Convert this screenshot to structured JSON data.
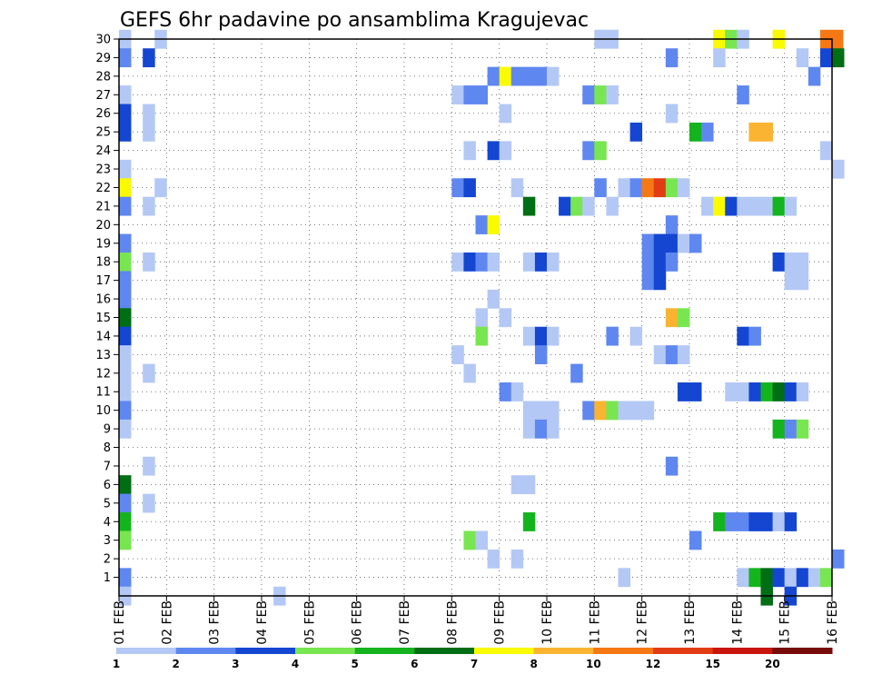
{
  "chart_data": {
    "type": "heatmap",
    "title": "GEFS 6hr padavine po ansamblima Kragujevac",
    "x_tick_labels": [
      "01 FEB",
      "02 FEB",
      "03 FEB",
      "04 FEB",
      "05 FEB",
      "06 FEB",
      "07 FEB",
      "08 FEB",
      "09 FEB",
      "10 FEB",
      "11 FEB",
      "12 FEB",
      "13 FEB",
      "14 FEB",
      "15 FEB",
      "16 FEB"
    ],
    "y_tick_labels": [
      "1",
      "2",
      "3",
      "4",
      "5",
      "6",
      "7",
      "8",
      "9",
      "10",
      "11",
      "12",
      "13",
      "14",
      "15",
      "16",
      "17",
      "18",
      "19",
      "20",
      "21",
      "22",
      "23",
      "24",
      "25",
      "26",
      "27",
      "28",
      "29",
      "30"
    ],
    "x_range": [
      0,
      15
    ],
    "y_range": [
      0,
      30
    ],
    "grid": true,
    "levels": [
      {
        "label": "1",
        "color": "#b4c8f5"
      },
      {
        "label": "2",
        "color": "#5f87f0"
      },
      {
        "label": "3",
        "color": "#1446d2"
      },
      {
        "label": "4",
        "color": "#78e650"
      },
      {
        "label": "5",
        "color": "#14b41e"
      },
      {
        "label": "6",
        "color": "#006e14"
      },
      {
        "label": "7",
        "color": "#fafa00"
      },
      {
        "label": "8",
        "color": "#fab432"
      },
      {
        "label": "10",
        "color": "#f57814"
      },
      {
        "label": "12",
        "color": "#e13c14"
      },
      {
        "label": "15",
        "color": "#c8140a"
      },
      {
        "label": "20",
        "color": "#780a0a"
      }
    ],
    "cells": [
      [
        0,
        30,
        0
      ],
      [
        0.75,
        30,
        0
      ],
      [
        10,
        30,
        0
      ],
      [
        10.25,
        30,
        0
      ],
      [
        12.5,
        30,
        6
      ],
      [
        12.75,
        30,
        3
      ],
      [
        13,
        30,
        0
      ],
      [
        13.75,
        30,
        6
      ],
      [
        14.75,
        30,
        8
      ],
      [
        14.98,
        30,
        8
      ],
      [
        0,
        29,
        1
      ],
      [
        0.5,
        29,
        2
      ],
      [
        11.5,
        29,
        1
      ],
      [
        12.5,
        29,
        0
      ],
      [
        14.25,
        29,
        0
      ],
      [
        14.75,
        29,
        2
      ],
      [
        15,
        29,
        5
      ],
      [
        7.75,
        28,
        1
      ],
      [
        8,
        28,
        6
      ],
      [
        8.25,
        28,
        1
      ],
      [
        8.5,
        28,
        1
      ],
      [
        8.75,
        28,
        1
      ],
      [
        9,
        28,
        0
      ],
      [
        14.5,
        28,
        1
      ],
      [
        0,
        27,
        0
      ],
      [
        7,
        27,
        0
      ],
      [
        7.25,
        27,
        1
      ],
      [
        7.5,
        27,
        1
      ],
      [
        9.75,
        27,
        1
      ],
      [
        10,
        27,
        3
      ],
      [
        10.25,
        27,
        0
      ],
      [
        13,
        27,
        1
      ],
      [
        0,
        26,
        2
      ],
      [
        0.5,
        26,
        0
      ],
      [
        8,
        26,
        0
      ],
      [
        11.5,
        26,
        0
      ],
      [
        0,
        25,
        2
      ],
      [
        0.5,
        25,
        0
      ],
      [
        10.75,
        25,
        2
      ],
      [
        12,
        25,
        4
      ],
      [
        12.25,
        25,
        1
      ],
      [
        13.25,
        25,
        7
      ],
      [
        13.5,
        25,
        7
      ],
      [
        7.25,
        24,
        0
      ],
      [
        7.75,
        24,
        2
      ],
      [
        8,
        24,
        0
      ],
      [
        9.75,
        24,
        1
      ],
      [
        10,
        24,
        3
      ],
      [
        14.75,
        24,
        0
      ],
      [
        0,
        23,
        0
      ],
      [
        15,
        23,
        0
      ],
      [
        0,
        22,
        6
      ],
      [
        0.75,
        22,
        0
      ],
      [
        7,
        22,
        1
      ],
      [
        7.25,
        22,
        2
      ],
      [
        8.25,
        22,
        0
      ],
      [
        10,
        22,
        1
      ],
      [
        10.5,
        22,
        0
      ],
      [
        10.75,
        22,
        1
      ],
      [
        11,
        22,
        8
      ],
      [
        11.25,
        22,
        9
      ],
      [
        11.5,
        22,
        3
      ],
      [
        11.75,
        22,
        0
      ],
      [
        0,
        21,
        1
      ],
      [
        0.5,
        21,
        0
      ],
      [
        8.5,
        21,
        5
      ],
      [
        9.25,
        21,
        2
      ],
      [
        9.5,
        21,
        3
      ],
      [
        9.75,
        21,
        0
      ],
      [
        10.25,
        21,
        0
      ],
      [
        12.25,
        21,
        0
      ],
      [
        12.5,
        21,
        6
      ],
      [
        12.75,
        21,
        2
      ],
      [
        13,
        21,
        0
      ],
      [
        13.25,
        21,
        0
      ],
      [
        13.5,
        21,
        0
      ],
      [
        13.75,
        21,
        4
      ],
      [
        14,
        21,
        0
      ],
      [
        7.5,
        20,
        1
      ],
      [
        7.75,
        20,
        6
      ],
      [
        11.5,
        20,
        1
      ],
      [
        0,
        19,
        1
      ],
      [
        11,
        19,
        1
      ],
      [
        11.25,
        19,
        2
      ],
      [
        11.5,
        19,
        2
      ],
      [
        11.75,
        19,
        0
      ],
      [
        12,
        19,
        1
      ],
      [
        0,
        18,
        3
      ],
      [
        0.5,
        18,
        0
      ],
      [
        7,
        18,
        0
      ],
      [
        7.25,
        18,
        2
      ],
      [
        7.5,
        18,
        1
      ],
      [
        7.75,
        18,
        0
      ],
      [
        8.5,
        18,
        0
      ],
      [
        8.75,
        18,
        2
      ],
      [
        9,
        18,
        0
      ],
      [
        11,
        18,
        1
      ],
      [
        11.25,
        18,
        2
      ],
      [
        11.5,
        18,
        1
      ],
      [
        13.75,
        18,
        2
      ],
      [
        14,
        18,
        0
      ],
      [
        14.25,
        18,
        0
      ],
      [
        0,
        17,
        1
      ],
      [
        11,
        17,
        1
      ],
      [
        11.25,
        17,
        2
      ],
      [
        14,
        17,
        0
      ],
      [
        14.25,
        17,
        0
      ],
      [
        0,
        16,
        1
      ],
      [
        7.75,
        16,
        0
      ],
      [
        0,
        15,
        5
      ],
      [
        7.5,
        15,
        0
      ],
      [
        8,
        15,
        0
      ],
      [
        11.5,
        15,
        7
      ],
      [
        11.75,
        15,
        3
      ],
      [
        0,
        14,
        2
      ],
      [
        7.5,
        14,
        3
      ],
      [
        8.5,
        14,
        0
      ],
      [
        8.75,
        14,
        2
      ],
      [
        9,
        14,
        0
      ],
      [
        10.25,
        14,
        1
      ],
      [
        10.75,
        14,
        0
      ],
      [
        13,
        14,
        2
      ],
      [
        13.25,
        14,
        1
      ],
      [
        0,
        13,
        0
      ],
      [
        7,
        13,
        0
      ],
      [
        8.75,
        13,
        1
      ],
      [
        11.25,
        13,
        0
      ],
      [
        11.5,
        13,
        1
      ],
      [
        11.75,
        13,
        0
      ],
      [
        0,
        12,
        0
      ],
      [
        0.5,
        12,
        0
      ],
      [
        7.25,
        12,
        0
      ],
      [
        9.5,
        12,
        1
      ],
      [
        0,
        11,
        0
      ],
      [
        8,
        11,
        1
      ],
      [
        8.25,
        11,
        0
      ],
      [
        11.75,
        11,
        2
      ],
      [
        12,
        11,
        2
      ],
      [
        12.75,
        11,
        0
      ],
      [
        13,
        11,
        0
      ],
      [
        13.25,
        11,
        2
      ],
      [
        13.5,
        11,
        4
      ],
      [
        13.75,
        11,
        5
      ],
      [
        14,
        11,
        2
      ],
      [
        14.25,
        11,
        0
      ],
      [
        0,
        10,
        1
      ],
      [
        8.5,
        10,
        0
      ],
      [
        8.75,
        10,
        0
      ],
      [
        9,
        10,
        0
      ],
      [
        9.75,
        10,
        1
      ],
      [
        10,
        10,
        7
      ],
      [
        10.25,
        10,
        3
      ],
      [
        10.5,
        10,
        0
      ],
      [
        10.75,
        10,
        0
      ],
      [
        11,
        10,
        0
      ],
      [
        0,
        9,
        0
      ],
      [
        8.5,
        9,
        0
      ],
      [
        8.75,
        9,
        1
      ],
      [
        9,
        9,
        0
      ],
      [
        13.75,
        9,
        4
      ],
      [
        14,
        9,
        1
      ],
      [
        14.25,
        9,
        3
      ],
      [
        0.5,
        7,
        0
      ],
      [
        11.5,
        7,
        1
      ],
      [
        0,
        6,
        5
      ],
      [
        8.25,
        6,
        0
      ],
      [
        8.5,
        6,
        0
      ],
      [
        0,
        5,
        1
      ],
      [
        0.5,
        5,
        0
      ],
      [
        0,
        4,
        4
      ],
      [
        8.5,
        4,
        4
      ],
      [
        12.5,
        4,
        4
      ],
      [
        12.75,
        4,
        1
      ],
      [
        13,
        4,
        1
      ],
      [
        13.25,
        4,
        2
      ],
      [
        13.5,
        4,
        2
      ],
      [
        13.75,
        4,
        0
      ],
      [
        14,
        4,
        2
      ],
      [
        0,
        3,
        3
      ],
      [
        7.25,
        3,
        3
      ],
      [
        7.5,
        3,
        0
      ],
      [
        12,
        3,
        1
      ],
      [
        7.75,
        2,
        0
      ],
      [
        8.25,
        2,
        0
      ],
      [
        15,
        2,
        1
      ],
      [
        0,
        1,
        1
      ],
      [
        10.5,
        1,
        0
      ],
      [
        13,
        1,
        0
      ],
      [
        13.25,
        1,
        4
      ],
      [
        13.5,
        1,
        5
      ],
      [
        13.75,
        1,
        2
      ],
      [
        14,
        1,
        0
      ],
      [
        14.25,
        1,
        2
      ],
      [
        14.5,
        1,
        0
      ],
      [
        14.75,
        1,
        3
      ],
      [
        0,
        0,
        0
      ],
      [
        3.25,
        0,
        0
      ],
      [
        13.5,
        0,
        5
      ],
      [
        14,
        0,
        2
      ]
    ]
  }
}
